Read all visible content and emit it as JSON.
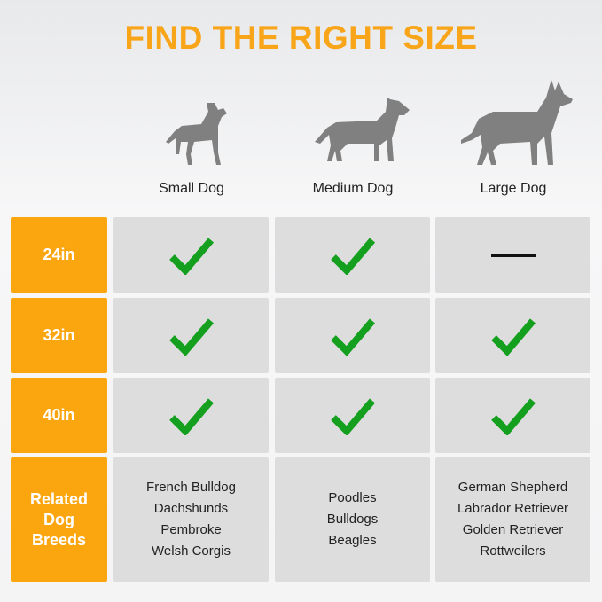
{
  "title": "FIND THE RIGHT SIZE",
  "columns": [
    "Small Dog",
    "Medium Dog",
    "Large Dog"
  ],
  "colors": {
    "accent": "#fba50f",
    "check": "#14a01e",
    "cell": "#dddddd"
  },
  "rows": [
    {
      "label": "24in",
      "values": [
        "check",
        "check",
        "dash"
      ]
    },
    {
      "label": "32in",
      "values": [
        "check",
        "check",
        "check"
      ]
    },
    {
      "label": "40in",
      "values": [
        "check",
        "check",
        "check"
      ]
    }
  ],
  "breeds": {
    "label": "Related Dog Breeds",
    "lists": [
      [
        "French Bulldog",
        "Dachshunds",
        "Pembroke",
        "Welsh Corgis"
      ],
      [
        "Poodles",
        "Bulldogs",
        "Beagles"
      ],
      [
        "German Shepherd",
        "Labrador Retriever",
        "Golden Retriever",
        "Rottweilers"
      ]
    ]
  }
}
